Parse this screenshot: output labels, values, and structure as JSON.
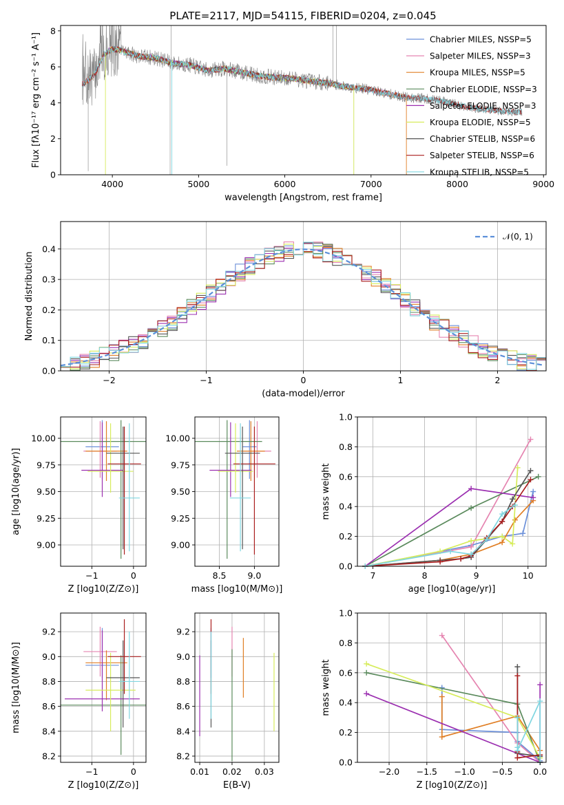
{
  "title": "PLATE=2117, MJD=54115, FIBERID=0204, z=0.045",
  "colors": {
    "chabrier_miles": "#6b8fd9",
    "salpeter_miles": "#e584b0",
    "kroupa_miles": "#e07e24",
    "chabrier_elodie": "#5a8a5c",
    "salpeter_elodie": "#9b2fb0",
    "kroupa_elodie": "#d6ec5a",
    "chabrier_stelib": "#555555",
    "salpeter_stelib": "#aa1d1d",
    "kroupa_stelib": "#7fd6e0",
    "data": "#808080",
    "normal": "#5b8fd9"
  },
  "chart_data": [
    {
      "id": "spectrum",
      "type": "line",
      "title": "PLATE=2117, MJD=54115, FIBERID=0204, z=0.045",
      "xlabel": "wavelength [Angstrom, rest frame]",
      "ylabel": "Flux [fλ10⁻¹⁷ erg cm⁻² s⁻¹ A⁻¹]",
      "xlim": [
        3400,
        9030
      ],
      "ylim": [
        0,
        8.3
      ],
      "xticks": [
        4000,
        5000,
        6000,
        7000,
        8000,
        9000
      ],
      "yticks": [
        0,
        2,
        4,
        6,
        8
      ],
      "legend": [
        "Chabrier MILES, NSSP=5",
        "Salpeter MILES, NSSP=3",
        "Kroupa MILES, NSSP=5",
        "Chabrier ELODIE, NSSP=3",
        "Salpeter ELODIE, NSSP=3",
        "Kroupa ELODIE, NSSP=5",
        "Chabrier STELIB, NSSP=6",
        "Salpeter STELIB, NSSP=6",
        "Kroupa STELIB, NSSP=5"
      ],
      "legend_position": "upper right",
      "continuum": [
        [
          3650,
          5.0
        ],
        [
          3800,
          5.6
        ],
        [
          3900,
          6.7
        ],
        [
          4000,
          7.0
        ],
        [
          4100,
          6.9
        ],
        [
          4300,
          6.6
        ],
        [
          4500,
          6.5
        ],
        [
          4700,
          6.2
        ],
        [
          4900,
          6.1
        ],
        [
          5100,
          5.8
        ],
        [
          5300,
          5.9
        ],
        [
          5500,
          5.7
        ],
        [
          5700,
          5.5
        ],
        [
          5900,
          5.4
        ],
        [
          6100,
          5.35
        ],
        [
          6300,
          5.2
        ],
        [
          6500,
          5.1
        ],
        [
          6700,
          4.9
        ],
        [
          6900,
          4.8
        ],
        [
          7100,
          4.6
        ],
        [
          7300,
          4.4
        ],
        [
          7420,
          4.3
        ],
        [
          7600,
          4.25
        ],
        [
          7800,
          4.1
        ],
        [
          8000,
          3.9
        ],
        [
          8200,
          3.7
        ],
        [
          8400,
          3.6
        ],
        [
          8600,
          3.5
        ],
        [
          8750,
          3.5
        ]
      ],
      "series": [
        {
          "name": "Chabrier MILES, NSSP=5",
          "color": "#6b8fd9",
          "range": [
            3650,
            7410
          ]
        },
        {
          "name": "Salpeter MILES, NSSP=3",
          "color": "#e584b0",
          "range": [
            3650,
            7410
          ]
        },
        {
          "name": "Kroupa MILES, NSSP=5",
          "color": "#e07e24",
          "range": [
            3650,
            7410
          ]
        },
        {
          "name": "Chabrier ELODIE, NSSP=3",
          "color": "#5a8a5c",
          "range": [
            3900,
            6800
          ]
        },
        {
          "name": "Salpeter ELODIE, NSSP=3",
          "color": "#9b2fb0",
          "range": [
            3900,
            6800
          ]
        },
        {
          "name": "Kroupa ELODIE, NSSP=5",
          "color": "#d6ec5a",
          "range": [
            3900,
            6800
          ]
        },
        {
          "name": "Chabrier STELIB, NSSP=6",
          "color": "#555555",
          "range": [
            3650,
            8750
          ]
        },
        {
          "name": "Salpeter STELIB, NSSP=6",
          "color": "#aa1d1d",
          "range": [
            3650,
            8750
          ]
        },
        {
          "name": "Kroupa STELIB, NSSP=5",
          "color": "#7fd6e0",
          "range": [
            3650,
            8750
          ]
        }
      ]
    },
    {
      "id": "residuals",
      "type": "histogram",
      "xlabel": "(data-model)/error",
      "ylabel": "Normed distribution",
      "xlim": [
        -2.5,
        2.5
      ],
      "ylim": [
        0,
        0.49
      ],
      "xticks": [
        -2,
        -1,
        0,
        1,
        2
      ],
      "yticks": [
        0.0,
        0.1,
        0.2,
        0.3,
        0.4
      ],
      "grid": true,
      "legend": [
        "𝒩(0, 1)"
      ],
      "legend_position": "upper right",
      "normal": {
        "mean": 0,
        "sigma": 1,
        "label": "𝒩(0, 1)"
      },
      "bin_width": 0.1
    },
    {
      "id": "age_vs_Z",
      "type": "errorbar",
      "xlabel": "Z [log10(Z/Z⊙)]",
      "ylabel": "age  [log10(age/yr)]",
      "xlim": [
        -1.75,
        0.3
      ],
      "ylim": [
        8.8,
        10.2
      ],
      "xticks": [
        -1,
        0
      ],
      "yticks": [
        9.0,
        9.25,
        9.5,
        9.75,
        10.0
      ],
      "points": [
        {
          "x": -0.75,
          "y": 9.92,
          "xerr": 0.4,
          "yerr": [
            0.3,
            0.25
          ],
          "color": "#6b8fd9"
        },
        {
          "x": -0.8,
          "y": 9.88,
          "xerr": 0.4,
          "yerr": [
            0.25,
            0.28
          ],
          "color": "#e584b0"
        },
        {
          "x": -0.65,
          "y": 9.88,
          "xerr": 0.5,
          "yerr": [
            0.28,
            0.28
          ],
          "color": "#e07e24"
        },
        {
          "x": -0.3,
          "y": 9.97,
          "xerr": 1.5,
          "yerr": [
            1.1,
            0.2
          ],
          "color": "#5a8a5c"
        },
        {
          "x": -0.75,
          "y": 9.7,
          "xerr": 0.5,
          "yerr": [
            0.25,
            0.45
          ],
          "color": "#9b2fb0"
        },
        {
          "x": -0.55,
          "y": 9.69,
          "xerr": 0.55,
          "yerr": [
            0.2,
            0.45
          ],
          "color": "#d6ec5a"
        },
        {
          "x": -0.25,
          "y": 9.86,
          "xerr": 0.4,
          "yerr": [
            0.9,
            0.25
          ],
          "color": "#555555"
        },
        {
          "x": -0.22,
          "y": 9.76,
          "xerr": 0.4,
          "yerr": [
            0.85,
            0.35
          ],
          "color": "#aa1d1d"
        },
        {
          "x": -0.1,
          "y": 9.44,
          "xerr": 0.25,
          "yerr": [
            0.5,
            0.7
          ],
          "color": "#7fd6e0"
        }
      ]
    },
    {
      "id": "age_vs_mass",
      "type": "errorbar",
      "xlabel": "mass [log10(M/M⊙)]",
      "ylabel": "",
      "xlim": [
        8.15,
        9.35
      ],
      "ylim": [
        8.8,
        10.2
      ],
      "xticks": [
        8.5,
        9.0
      ],
      "yticks": [
        9.0,
        9.25,
        9.5,
        9.75,
        10.0
      ],
      "points": [
        {
          "x": 8.93,
          "y": 9.92,
          "xerr": 0.1,
          "yerr": [
            0.3,
            0.25
          ],
          "color": "#6b8fd9"
        },
        {
          "x": 9.04,
          "y": 9.88,
          "xerr": 0.2,
          "yerr": [
            0.25,
            0.28
          ],
          "color": "#e584b0"
        },
        {
          "x": 8.95,
          "y": 9.88,
          "xerr": 0.2,
          "yerr": [
            0.28,
            0.28
          ],
          "color": "#e07e24"
        },
        {
          "x": 8.61,
          "y": 9.97,
          "xerr": 0.5,
          "yerr": [
            1.1,
            0.2
          ],
          "color": "#5a8a5c"
        },
        {
          "x": 8.66,
          "y": 9.7,
          "xerr": 0.3,
          "yerr": [
            0.25,
            0.45
          ],
          "color": "#9b2fb0"
        },
        {
          "x": 8.73,
          "y": 9.69,
          "xerr": 0.25,
          "yerr": [
            0.2,
            0.45
          ],
          "color": "#d6ec5a"
        },
        {
          "x": 8.83,
          "y": 9.86,
          "xerr": 0.25,
          "yerr": [
            0.9,
            0.25
          ],
          "color": "#555555"
        },
        {
          "x": 9.0,
          "y": 9.76,
          "xerr": 0.3,
          "yerr": [
            0.85,
            0.35
          ],
          "color": "#aa1d1d"
        },
        {
          "x": 8.8,
          "y": 9.44,
          "xerr": 0.15,
          "yerr": [
            0.5,
            0.7
          ],
          "color": "#7fd6e0"
        }
      ]
    },
    {
      "id": "massweight_vs_age",
      "type": "line",
      "xlabel": "age  [log10(age/yr)]",
      "ylabel": "mass weight",
      "xlim": [
        6.7,
        10.35
      ],
      "ylim": [
        0,
        1.0
      ],
      "xticks": [
        7,
        8,
        9,
        10
      ],
      "yticks": [
        0.0,
        0.2,
        0.4,
        0.6,
        0.8,
        1.0
      ],
      "series": [
        {
          "name": "Chabrier MILES",
          "color": "#6b8fd9",
          "x": [
            6.85,
            8.9,
            9.5,
            9.9,
            10.1
          ],
          "y": [
            0.0,
            0.14,
            0.2,
            0.22,
            0.5
          ]
        },
        {
          "name": "Salpeter MILES",
          "color": "#e584b0",
          "x": [
            6.85,
            8.9,
            10.05
          ],
          "y": [
            0.0,
            0.13,
            0.85
          ]
        },
        {
          "name": "Kroupa MILES",
          "color": "#e07e24",
          "x": [
            6.85,
            8.3,
            8.9,
            9.5,
            9.75,
            10.1
          ],
          "y": [
            0.0,
            0.04,
            0.08,
            0.16,
            0.31,
            0.44
          ]
        },
        {
          "name": "Chabrier ELODIE",
          "color": "#5a8a5c",
          "x": [
            6.85,
            8.9,
            10.2
          ],
          "y": [
            0.0,
            0.39,
            0.6
          ]
        },
        {
          "name": "Salpeter ELODIE",
          "color": "#9b2fb0",
          "x": [
            6.85,
            8.9,
            10.1
          ],
          "y": [
            0.0,
            0.52,
            0.46
          ]
        },
        {
          "name": "Kroupa ELODIE",
          "color": "#d6ec5a",
          "x": [
            6.85,
            8.3,
            8.9,
            9.5,
            9.7,
            9.8
          ],
          "y": [
            0.0,
            0.1,
            0.17,
            0.2,
            0.15,
            0.66
          ]
        },
        {
          "name": "Chabrier STELIB",
          "color": "#555555",
          "x": [
            6.85,
            8.3,
            8.7,
            8.9,
            9.2,
            9.5,
            9.7,
            10.05
          ],
          "y": [
            0.0,
            0.04,
            0.05,
            0.06,
            0.18,
            0.3,
            0.45,
            0.64
          ]
        },
        {
          "name": "Salpeter STELIB",
          "color": "#aa1d1d",
          "x": [
            6.85,
            8.3,
            8.7,
            8.9,
            9.2,
            9.5,
            9.7,
            10.05
          ],
          "y": [
            0.0,
            0.03,
            0.05,
            0.07,
            0.19,
            0.3,
            0.4,
            0.58
          ]
        },
        {
          "name": "Kroupa STELIB",
          "color": "#7fd6e0",
          "x": [
            6.85,
            8.5,
            8.9,
            9.2,
            9.5,
            9.75
          ],
          "y": [
            0.0,
            0.1,
            0.08,
            0.18,
            0.35,
            0.41
          ]
        }
      ]
    },
    {
      "id": "mass_vs_Z",
      "type": "errorbar",
      "xlabel": "Z [log10(Z/Z⊙)]",
      "ylabel": "mass [log10(M/M⊙)]",
      "xlim": [
        -1.75,
        0.3
      ],
      "ylim": [
        8.15,
        9.35
      ],
      "xticks": [
        -1,
        0
      ],
      "yticks": [
        8.2,
        8.4,
        8.6,
        8.8,
        9.0,
        9.2
      ],
      "points": [
        {
          "x": -0.75,
          "y": 8.93,
          "xerr": 0.4,
          "yerr": [
            0.1,
            0.3
          ],
          "color": "#6b8fd9"
        },
        {
          "x": -0.8,
          "y": 9.04,
          "xerr": 0.4,
          "yerr": [
            0.2,
            0.2
          ],
          "color": "#e584b0"
        },
        {
          "x": -0.65,
          "y": 8.95,
          "xerr": 0.5,
          "yerr": [
            0.3,
            0.1
          ],
          "color": "#e07e24"
        },
        {
          "x": -0.3,
          "y": 8.61,
          "xerr": 1.5,
          "yerr": [
            0.4,
            0.4
          ],
          "color": "#5a8a5c"
        },
        {
          "x": -0.75,
          "y": 8.66,
          "xerr": 0.9,
          "yerr": [
            0.1,
            0.55
          ],
          "color": "#9b2fb0"
        },
        {
          "x": -0.55,
          "y": 8.73,
          "xerr": 0.6,
          "yerr": [
            0.33,
            0.3
          ],
          "color": "#d6ec5a"
        },
        {
          "x": -0.25,
          "y": 8.83,
          "xerr": 0.4,
          "yerr": [
            0.4,
            0.3
          ],
          "color": "#555555"
        },
        {
          "x": -0.22,
          "y": 9.0,
          "xerr": 0.4,
          "yerr": [
            0.3,
            0.3
          ],
          "color": "#aa1d1d"
        },
        {
          "x": -0.1,
          "y": 8.8,
          "xerr": 0.25,
          "yerr": [
            0.3,
            0.4
          ],
          "color": "#7fd6e0"
        }
      ]
    },
    {
      "id": "mass_vs_ebv",
      "type": "errorbar",
      "xlabel": "E(B-V)",
      "ylabel": "",
      "xlim": [
        0.0085,
        0.0345
      ],
      "ylim": [
        8.15,
        9.35
      ],
      "xticks": [
        0.01,
        0.02,
        0.03
      ],
      "yticks": [
        8.2,
        8.4,
        8.6,
        8.8,
        9.0,
        9.2
      ],
      "points": [
        {
          "x": 0.0135,
          "y": 8.93,
          "yerr": [
            0.1,
            0.3
          ],
          "color": "#6b8fd9"
        },
        {
          "x": 0.02,
          "y": 9.04,
          "yerr": [
            0.2,
            0.2
          ],
          "color": "#e584b0"
        },
        {
          "x": 0.0235,
          "y": 8.95,
          "yerr": [
            0.28,
            0.2
          ],
          "color": "#e07e24"
        },
        {
          "x": 0.02,
          "y": 8.61,
          "yerr": [
            0.45,
            0.45
          ],
          "color": "#5a8a5c"
        },
        {
          "x": 0.01,
          "y": 8.66,
          "yerr": [
            0.3,
            0.35
          ],
          "color": "#9b2fb0"
        },
        {
          "x": 0.033,
          "y": 8.73,
          "yerr": [
            0.33,
            0.3
          ],
          "color": "#d6ec5a"
        },
        {
          "x": 0.0135,
          "y": 8.83,
          "yerr": [
            0.4,
            0.3
          ],
          "color": "#555555"
        },
        {
          "x": 0.0135,
          "y": 9.0,
          "yerr": [
            0.3,
            0.3
          ],
          "color": "#aa1d1d"
        },
        {
          "x": 0.0135,
          "y": 8.8,
          "yerr": [
            0.3,
            0.4
          ],
          "color": "#7fd6e0"
        }
      ]
    },
    {
      "id": "massweight_vs_Z",
      "type": "line",
      "xlabel": "Z [log10(Z/Z⊙)]",
      "ylabel": "mass weight",
      "xlim": [
        -2.42,
        0.08
      ],
      "ylim": [
        0,
        1.0
      ],
      "xticks": [
        -2.0,
        -1.5,
        -1.0,
        -0.5,
        0.0
      ],
      "yticks": [
        0.0,
        0.2,
        0.4,
        0.6,
        0.8,
        1.0
      ],
      "series": [
        {
          "name": "Chabrier MILES",
          "color": "#6b8fd9",
          "x": [
            -1.3,
            -1.3,
            -0.3,
            -0.3,
            0.0,
            0.0
          ],
          "y": [
            0.5,
            0.22,
            0.2,
            0.14,
            0.01,
            0.0
          ]
        },
        {
          "name": "Salpeter MILES",
          "color": "#e584b0",
          "x": [
            -1.3,
            -0.3,
            0.0
          ],
          "y": [
            0.85,
            0.13,
            0.0
          ]
        },
        {
          "name": "Kroupa MILES",
          "color": "#e07e24",
          "x": [
            -1.3,
            -1.3,
            -0.3,
            0.0,
            0.0
          ],
          "y": [
            0.44,
            0.17,
            0.31,
            0.08,
            0.0
          ]
        },
        {
          "name": "Chabrier ELODIE",
          "color": "#5a8a5c",
          "x": [
            -2.3,
            -0.3,
            0.0
          ],
          "y": [
            0.6,
            0.39,
            0.0
          ]
        },
        {
          "name": "Salpeter ELODIE",
          "color": "#9b2fb0",
          "x": [
            -2.3,
            0.0,
            0.0
          ],
          "y": [
            0.46,
            0.0,
            0.52
          ]
        },
        {
          "name": "Kroupa ELODIE",
          "color": "#d6ec5a",
          "x": [
            -2.3,
            -0.3,
            0.0,
            0.0
          ],
          "y": [
            0.66,
            0.3,
            0.03,
            0.0
          ]
        },
        {
          "name": "Chabrier STELIB",
          "color": "#555555",
          "x": [
            -0.3,
            -0.3,
            -0.3,
            0.0,
            0.0
          ],
          "y": [
            0.64,
            0.3,
            0.06,
            0.04,
            0.0
          ]
        },
        {
          "name": "Salpeter STELIB",
          "color": "#aa1d1d",
          "x": [
            -0.3,
            -0.3,
            -0.3,
            0.0,
            0.0
          ],
          "y": [
            0.58,
            0.07,
            0.03,
            0.05,
            0.0
          ]
        },
        {
          "name": "Kroupa STELIB",
          "color": "#7fd6e0",
          "x": [
            -0.3,
            -0.3,
            -0.3,
            0.0,
            0.0
          ],
          "y": [
            0.3,
            0.1,
            0.08,
            0.41,
            0.0
          ]
        }
      ]
    }
  ]
}
